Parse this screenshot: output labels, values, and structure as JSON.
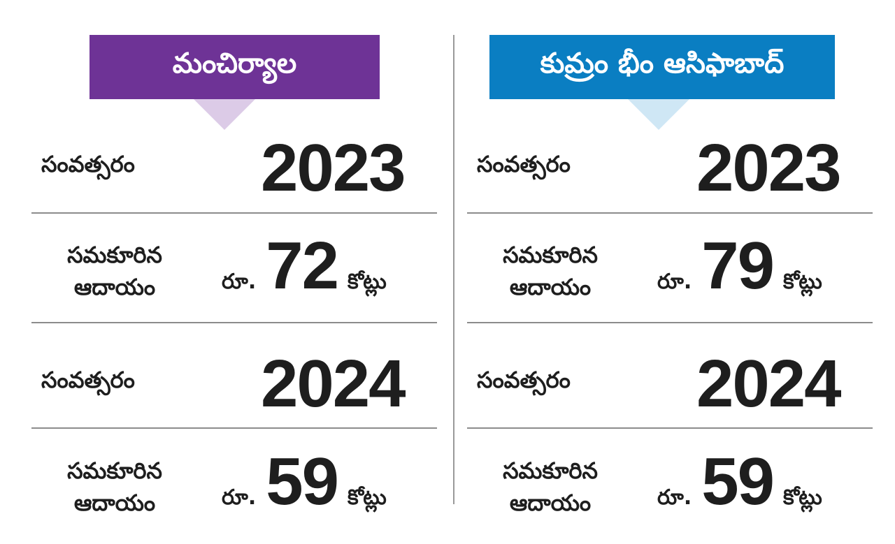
{
  "colors": {
    "left_header_bg": "#6e3396",
    "left_pointer": "#dccbe7",
    "right_header_bg": "#0a7ec2",
    "right_pointer": "#cfe7f5",
    "text": "#1e1e1e",
    "divider": "#8c8c8c"
  },
  "districts": [
    {
      "name": "మంచిర్యాల",
      "rows": [
        {
          "label": "సంవత్సరం",
          "value": "2023"
        },
        {
          "label": "సమకూరిన ఆదాయం",
          "prefix": "రూ.",
          "amount": "72",
          "unit": "కోట్లు"
        },
        {
          "label": "సంవత్సరం",
          "value": "2024"
        },
        {
          "label": "సమకూరిన ఆదాయం",
          "prefix": "రూ.",
          "amount": "59",
          "unit": "కోట్లు"
        }
      ]
    },
    {
      "name": "కుమ్రం భీం ఆసిఫాబాద్",
      "rows": [
        {
          "label": "సంవత్సరం",
          "value": "2023"
        },
        {
          "label": "సమకూరిన ఆదాయం",
          "prefix": "రూ.",
          "amount": "79",
          "unit": "కోట్లు"
        },
        {
          "label": "సంవత్సరం",
          "value": "2024"
        },
        {
          "label": "సమకూరిన ఆదాయం",
          "prefix": "రూ.",
          "amount": "59",
          "unit": "కోట్లు"
        }
      ]
    }
  ]
}
